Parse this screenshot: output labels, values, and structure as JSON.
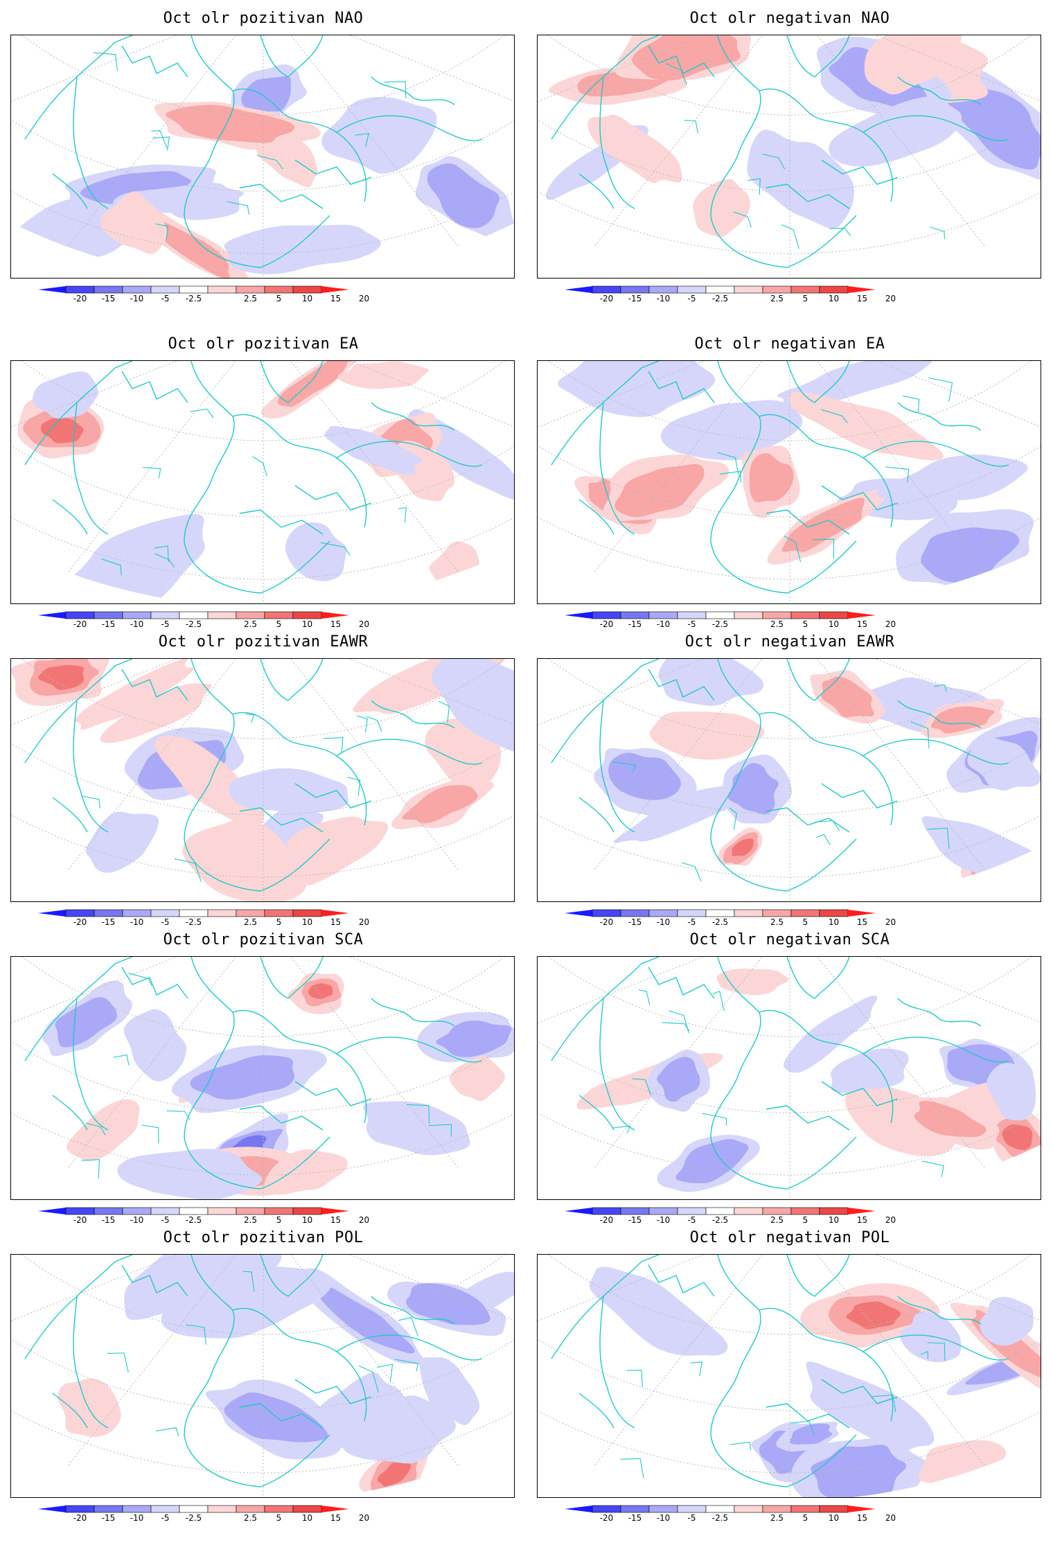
{
  "colorbar": {
    "labels": [
      "-20",
      "-15",
      "-10",
      "-5",
      "-2.5",
      "2.5",
      "5",
      "10",
      "15",
      "20"
    ],
    "colors": [
      "#1a1aff",
      "#4646f5",
      "#7777f0",
      "#a9a9f7",
      "#d6d6fb",
      "#ffffff",
      "#fcd6d6",
      "#f8a6a6",
      "#f27575",
      "#ec4747",
      "#ff1c1c"
    ]
  },
  "map_style": {
    "coast_color": "#20c8c8",
    "grid_color": "#b8b8b8"
  },
  "panels": [
    {
      "title": "Oct olr pozitivan NAO"
    },
    {
      "title": "Oct olr negativan NAO"
    },
    {
      "title": "Oct olr pozitivan EA"
    },
    {
      "title": "Oct olr negativan EA"
    },
    {
      "title": "Oct olr pozitivan EAWR"
    },
    {
      "title": "Oct olr negativan EAWR"
    },
    {
      "title": "Oct olr pozitivan SCA"
    },
    {
      "title": "Oct olr negativan SCA"
    },
    {
      "title": "Oct olr pozitivan POL"
    },
    {
      "title": "Oct olr negativan POL"
    }
  ]
}
